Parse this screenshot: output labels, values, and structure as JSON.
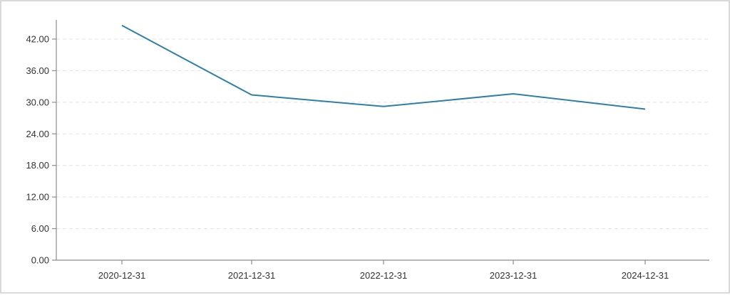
{
  "chart_data": {
    "type": "line",
    "title": "",
    "xlabel": "",
    "ylabel": "",
    "categories": [
      "2020-12-31",
      "2021-12-31",
      "2022-12-31",
      "2023-12-31",
      "2024-12-31"
    ],
    "series": [
      {
        "values": [
          44.6,
          31.4,
          29.2,
          31.6,
          28.7
        ]
      }
    ],
    "ylim": [
      0,
      42
    ],
    "yticks": [
      "0.00",
      "6.00",
      "12.00",
      "18.00",
      "24.00",
      "30.00",
      "36.00",
      "42.00"
    ],
    "grid": true,
    "colors": {
      "line": "#2e7fa6",
      "grid": "#e3e3e3",
      "axis": "#8c8c8c"
    }
  }
}
